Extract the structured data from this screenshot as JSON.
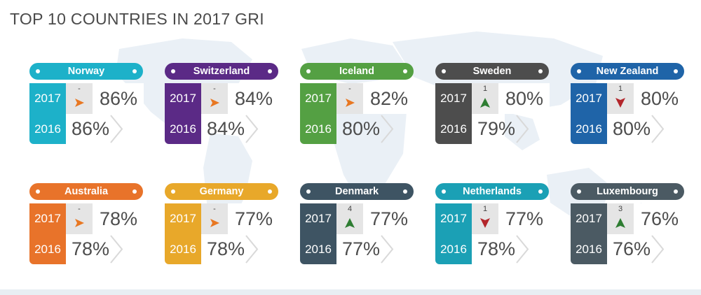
{
  "title": "TOP 10 COUNTRIES IN 2017 GRI",
  "cards": [
    {
      "country": "Norway",
      "color": "#1db1c9",
      "year_2017": "2017",
      "year_2016": "2016",
      "pct_2017": "86%",
      "pct_2016": "86%",
      "rank_change": "-",
      "trend": "same"
    },
    {
      "country": "Switzerland",
      "color": "#5b2a86",
      "year_2017": "2017",
      "year_2016": "2016",
      "pct_2017": "84%",
      "pct_2016": "84%",
      "rank_change": "-",
      "trend": "same"
    },
    {
      "country": "Iceland",
      "color": "#54a043",
      "year_2017": "2017",
      "year_2016": "2016",
      "pct_2017": "82%",
      "pct_2016": "80%",
      "rank_change": "-",
      "trend": "same"
    },
    {
      "country": "Sweden",
      "color": "#4d4d4d",
      "year_2017": "2017",
      "year_2016": "2016",
      "pct_2017": "80%",
      "pct_2016": "79%",
      "rank_change": "1",
      "trend": "up"
    },
    {
      "country": "New Zealand",
      "color": "#1f64a8",
      "year_2017": "2017",
      "year_2016": "2016",
      "pct_2017": "80%",
      "pct_2016": "80%",
      "rank_change": "1",
      "trend": "down"
    },
    {
      "country": "Australia",
      "color": "#e8732a",
      "year_2017": "2017",
      "year_2016": "2016",
      "pct_2017": "78%",
      "pct_2016": "78%",
      "rank_change": "-",
      "trend": "same"
    },
    {
      "country": "Germany",
      "color": "#e8a82a",
      "year_2017": "2017",
      "year_2016": "2016",
      "pct_2017": "77%",
      "pct_2016": "78%",
      "rank_change": "-",
      "trend": "same"
    },
    {
      "country": "Denmark",
      "color": "#3e5463",
      "year_2017": "2017",
      "year_2016": "2016",
      "pct_2017": "77%",
      "pct_2016": "77%",
      "rank_change": "4",
      "trend": "up"
    },
    {
      "country": "Netherlands",
      "color": "#1ba0b5",
      "year_2017": "2017",
      "year_2016": "2016",
      "pct_2017": "77%",
      "pct_2016": "78%",
      "rank_change": "1",
      "trend": "down"
    },
    {
      "country": "Luxembourg",
      "color": "#4b5a63",
      "year_2017": "2017",
      "year_2016": "2016",
      "pct_2017": "76%",
      "pct_2016": "76%",
      "rank_change": "3",
      "trend": "up"
    }
  ],
  "trend_colors": {
    "same": "#e87722",
    "up": "#2e7d32",
    "down": "#b3262b"
  },
  "icons": {
    "same": "triangle-right-icon",
    "up": "triangle-up-icon",
    "down": "triangle-down-icon"
  }
}
